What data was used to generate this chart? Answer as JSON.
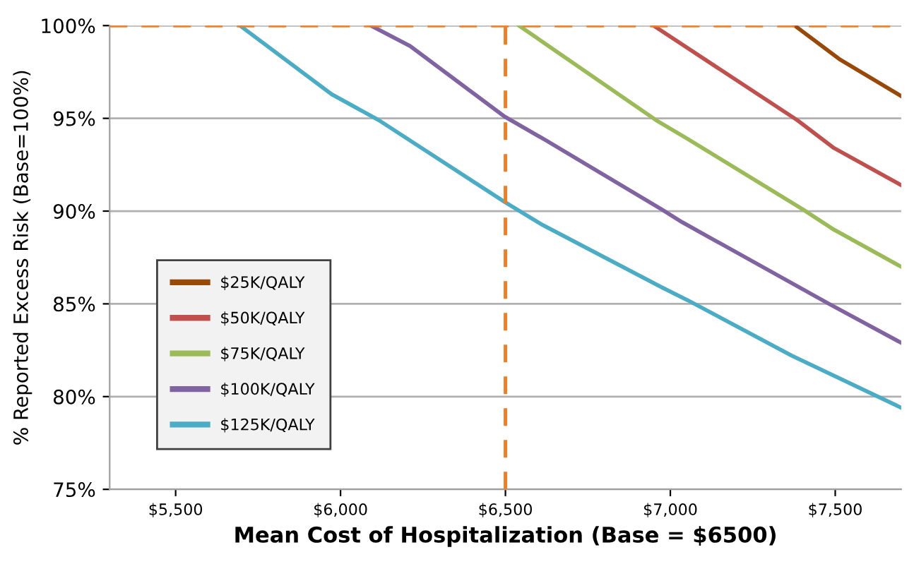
{
  "chart_data": {
    "type": "line",
    "xlabel": "Mean Cost of Hospitalization (Base = $6500)",
    "ylabel": "% Reported Excess Risk (Base=100%)",
    "xlim": [
      5300,
      7700
    ],
    "xticks": [
      {
        "value": 5500,
        "label": "$5,500"
      },
      {
        "value": 6000,
        "label": "$6,000"
      },
      {
        "value": 6500,
        "label": "$6,500"
      },
      {
        "value": 7000,
        "label": "$7,000"
      },
      {
        "value": 7500,
        "label": "$7,500"
      }
    ],
    "ylim": [
      75,
      100
    ],
    "yticks": [
      {
        "value": 75,
        "label": "75%"
      },
      {
        "value": 80,
        "label": "80%"
      },
      {
        "value": 85,
        "label": "85%"
      },
      {
        "value": 90,
        "label": "90%"
      },
      {
        "value": 95,
        "label": "95%"
      },
      {
        "value": 100,
        "label": "100%"
      }
    ],
    "grid": "y",
    "legend": "bottom left",
    "marker": "none",
    "line_style": "solid",
    "series": [
      {
        "name": "$25K/QALY",
        "color": "#984807",
        "x": [
          7377,
          7512,
          7700
        ],
        "values": [
          100,
          98.2,
          96.2
        ]
      },
      {
        "name": "$50K/QALY",
        "color": "#c0504d",
        "x": [
          6949,
          7385,
          7496,
          7700
        ],
        "values": [
          100,
          94.9,
          93.4,
          91.4
        ]
      },
      {
        "name": "$75K/QALY",
        "color": "#9bbb59",
        "x": [
          6541,
          6957,
          7052,
          7401,
          7496,
          7700
        ],
        "values": [
          100,
          94.9,
          93.9,
          90.1,
          89.0,
          87.0
        ]
      },
      {
        "name": "$100K/QALY",
        "color": "#8064a2",
        "x": [
          6092,
          6211,
          6497,
          6624,
          6973,
          7036,
          7481,
          7700
        ],
        "values": [
          100,
          98.9,
          95.1,
          93.8,
          90.1,
          89.4,
          85.0,
          82.9
        ]
      },
      {
        "name": "$125K/QALY",
        "color": "#4bacc6",
        "x": [
          5695,
          5973,
          6116,
          6497,
          6608,
          6973,
          7052,
          7369,
          7700
        ],
        "values": [
          100,
          96.3,
          94.9,
          90.5,
          89.3,
          85.9,
          85.2,
          82.2,
          79.4
        ]
      }
    ],
    "ref_lines": [
      {
        "axis": "x",
        "value": 6500,
        "label": null,
        "color": "#f07f23",
        "line_style": "dashed"
      },
      {
        "axis": "y",
        "value": 100,
        "label": null,
        "color": "#f07f23",
        "line_style": "dashed"
      }
    ]
  }
}
